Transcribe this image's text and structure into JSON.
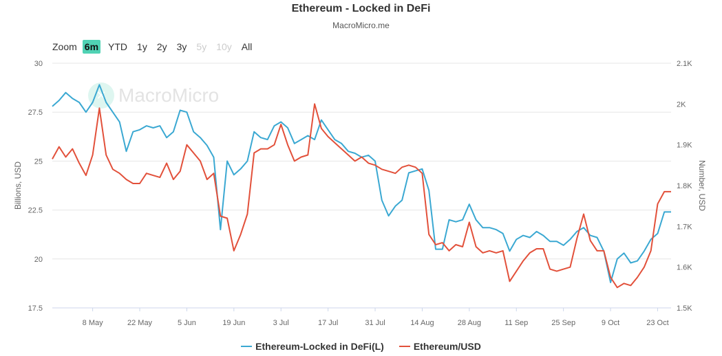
{
  "header": {
    "title": "Ethereum - Locked in DeFi",
    "subtitle": "MacroMicro.me"
  },
  "zoom": {
    "label": "Zoom",
    "buttons": [
      {
        "label": "6m",
        "state": "active"
      },
      {
        "label": "YTD",
        "state": "normal"
      },
      {
        "label": "1y",
        "state": "normal"
      },
      {
        "label": "2y",
        "state": "normal"
      },
      {
        "label": "3y",
        "state": "normal"
      },
      {
        "label": "5y",
        "state": "disabled"
      },
      {
        "label": "10y",
        "state": "disabled"
      },
      {
        "label": "All",
        "state": "normal"
      }
    ]
  },
  "watermark": {
    "text": "MacroMicro"
  },
  "legend": [
    {
      "label": "Ethereum-Locked in DeFi(L)",
      "color": "#3aa8d2"
    },
    {
      "label": "Ethereum/USD",
      "color": "#e2503a"
    }
  ],
  "chart_data": {
    "type": "line",
    "x_tick_labels": [
      "8 May",
      "22 May",
      "5 Jun",
      "19 Jun",
      "3 Jul",
      "17 Jul",
      "31 Jul",
      "14 Aug",
      "28 Aug",
      "11 Sep",
      "25 Sep",
      "9 Oct",
      "23 Oct"
    ],
    "x_range": [
      "2023-04-26",
      "2023-10-27"
    ],
    "left_axis": {
      "label": "Billions, USD",
      "ylim": [
        17.5,
        30
      ],
      "ticks": [
        "17.5",
        "20",
        "22.5",
        "25",
        "27.5",
        "30"
      ]
    },
    "right_axis": {
      "label": "Number, USD",
      "ylim": [
        1500,
        2100
      ],
      "ticks": [
        "1.5K",
        "1.6K",
        "1.7K",
        "1.8K",
        "1.9K",
        "2K",
        "2.1K"
      ]
    },
    "grid": "horizontal",
    "legend_position": "bottom-center",
    "series": [
      {
        "name": "Ethereum-Locked in DeFi(L)",
        "axis": "left",
        "color": "#3aa8d2",
        "points": [
          [
            "2023-04-26",
            27.8
          ],
          [
            "2023-04-28",
            28.1
          ],
          [
            "2023-04-30",
            28.5
          ],
          [
            "2023-05-02",
            28.2
          ],
          [
            "2023-05-04",
            28.0
          ],
          [
            "2023-05-06",
            27.5
          ],
          [
            "2023-05-08",
            28.0
          ],
          [
            "2023-05-10",
            28.9
          ],
          [
            "2023-05-12",
            28.0
          ],
          [
            "2023-05-14",
            27.5
          ],
          [
            "2023-05-16",
            27.0
          ],
          [
            "2023-05-18",
            25.5
          ],
          [
            "2023-05-20",
            26.5
          ],
          [
            "2023-05-22",
            26.6
          ],
          [
            "2023-05-24",
            26.8
          ],
          [
            "2023-05-26",
            26.7
          ],
          [
            "2023-05-28",
            26.8
          ],
          [
            "2023-05-30",
            26.2
          ],
          [
            "2023-06-01",
            26.5
          ],
          [
            "2023-06-03",
            27.6
          ],
          [
            "2023-06-05",
            27.5
          ],
          [
            "2023-06-07",
            26.5
          ],
          [
            "2023-06-09",
            26.2
          ],
          [
            "2023-06-11",
            25.8
          ],
          [
            "2023-06-13",
            25.2
          ],
          [
            "2023-06-15",
            21.5
          ],
          [
            "2023-06-17",
            25.0
          ],
          [
            "2023-06-19",
            24.3
          ],
          [
            "2023-06-21",
            24.6
          ],
          [
            "2023-06-23",
            25.0
          ],
          [
            "2023-06-25",
            26.5
          ],
          [
            "2023-06-27",
            26.2
          ],
          [
            "2023-06-29",
            26.1
          ],
          [
            "2023-07-01",
            26.8
          ],
          [
            "2023-07-03",
            27.0
          ],
          [
            "2023-07-05",
            26.7
          ],
          [
            "2023-07-07",
            25.9
          ],
          [
            "2023-07-09",
            26.1
          ],
          [
            "2023-07-11",
            26.3
          ],
          [
            "2023-07-13",
            26.1
          ],
          [
            "2023-07-15",
            27.1
          ],
          [
            "2023-07-17",
            26.6
          ],
          [
            "2023-07-19",
            26.1
          ],
          [
            "2023-07-21",
            25.9
          ],
          [
            "2023-07-23",
            25.5
          ],
          [
            "2023-07-25",
            25.4
          ],
          [
            "2023-07-27",
            25.2
          ],
          [
            "2023-07-29",
            25.3
          ],
          [
            "2023-07-31",
            25.0
          ],
          [
            "2023-08-02",
            23.0
          ],
          [
            "2023-08-04",
            22.2
          ],
          [
            "2023-08-06",
            22.7
          ],
          [
            "2023-08-08",
            23.0
          ],
          [
            "2023-08-10",
            24.4
          ],
          [
            "2023-08-12",
            24.5
          ],
          [
            "2023-08-14",
            24.6
          ],
          [
            "2023-08-16",
            23.5
          ],
          [
            "2023-08-18",
            20.5
          ],
          [
            "2023-08-20",
            20.5
          ],
          [
            "2023-08-22",
            22.0
          ],
          [
            "2023-08-24",
            21.9
          ],
          [
            "2023-08-26",
            22.0
          ],
          [
            "2023-08-28",
            22.8
          ],
          [
            "2023-08-30",
            22.0
          ],
          [
            "2023-09-01",
            21.6
          ],
          [
            "2023-09-03",
            21.6
          ],
          [
            "2023-09-05",
            21.5
          ],
          [
            "2023-09-07",
            21.3
          ],
          [
            "2023-09-09",
            20.4
          ],
          [
            "2023-09-11",
            21.0
          ],
          [
            "2023-09-13",
            21.2
          ],
          [
            "2023-09-15",
            21.1
          ],
          [
            "2023-09-17",
            21.4
          ],
          [
            "2023-09-19",
            21.2
          ],
          [
            "2023-09-21",
            20.9
          ],
          [
            "2023-09-23",
            20.9
          ],
          [
            "2023-09-25",
            20.7
          ],
          [
            "2023-09-27",
            21.0
          ],
          [
            "2023-09-29",
            21.4
          ],
          [
            "2023-10-01",
            21.6
          ],
          [
            "2023-10-03",
            21.2
          ],
          [
            "2023-10-05",
            21.1
          ],
          [
            "2023-10-07",
            20.4
          ],
          [
            "2023-10-09",
            18.8
          ],
          [
            "2023-10-11",
            20.0
          ],
          [
            "2023-10-13",
            20.3
          ],
          [
            "2023-10-15",
            19.8
          ],
          [
            "2023-10-17",
            19.9
          ],
          [
            "2023-10-19",
            20.4
          ],
          [
            "2023-10-21",
            21.0
          ],
          [
            "2023-10-23",
            21.3
          ],
          [
            "2023-10-25",
            22.4
          ],
          [
            "2023-10-27",
            22.4
          ]
        ]
      },
      {
        "name": "Ethereum/USD",
        "axis": "right",
        "color": "#e2503a",
        "points": [
          [
            "2023-04-26",
            1865
          ],
          [
            "2023-04-28",
            1895
          ],
          [
            "2023-04-30",
            1870
          ],
          [
            "2023-05-02",
            1890
          ],
          [
            "2023-05-04",
            1855
          ],
          [
            "2023-05-06",
            1825
          ],
          [
            "2023-05-08",
            1875
          ],
          [
            "2023-05-10",
            1990
          ],
          [
            "2023-05-12",
            1875
          ],
          [
            "2023-05-14",
            1840
          ],
          [
            "2023-05-16",
            1830
          ],
          [
            "2023-05-18",
            1815
          ],
          [
            "2023-05-20",
            1805
          ],
          [
            "2023-05-22",
            1805
          ],
          [
            "2023-05-24",
            1830
          ],
          [
            "2023-05-26",
            1825
          ],
          [
            "2023-05-28",
            1820
          ],
          [
            "2023-05-30",
            1855
          ],
          [
            "2023-06-01",
            1815
          ],
          [
            "2023-06-03",
            1835
          ],
          [
            "2023-06-05",
            1900
          ],
          [
            "2023-06-07",
            1880
          ],
          [
            "2023-06-09",
            1860
          ],
          [
            "2023-06-11",
            1815
          ],
          [
            "2023-06-13",
            1830
          ],
          [
            "2023-06-15",
            1725
          ],
          [
            "2023-06-17",
            1720
          ],
          [
            "2023-06-19",
            1640
          ],
          [
            "2023-06-21",
            1680
          ],
          [
            "2023-06-23",
            1730
          ],
          [
            "2023-06-25",
            1880
          ],
          [
            "2023-06-27",
            1890
          ],
          [
            "2023-06-29",
            1890
          ],
          [
            "2023-07-01",
            1900
          ],
          [
            "2023-07-03",
            1950
          ],
          [
            "2023-07-05",
            1900
          ],
          [
            "2023-07-07",
            1860
          ],
          [
            "2023-07-09",
            1870
          ],
          [
            "2023-07-11",
            1875
          ],
          [
            "2023-07-13",
            2000
          ],
          [
            "2023-07-15",
            1940
          ],
          [
            "2023-07-17",
            1920
          ],
          [
            "2023-07-19",
            1905
          ],
          [
            "2023-07-21",
            1890
          ],
          [
            "2023-07-23",
            1875
          ],
          [
            "2023-07-25",
            1860
          ],
          [
            "2023-07-27",
            1870
          ],
          [
            "2023-07-29",
            1855
          ],
          [
            "2023-07-31",
            1850
          ],
          [
            "2023-08-02",
            1840
          ],
          [
            "2023-08-04",
            1835
          ],
          [
            "2023-08-06",
            1830
          ],
          [
            "2023-08-08",
            1845
          ],
          [
            "2023-08-10",
            1850
          ],
          [
            "2023-08-12",
            1845
          ],
          [
            "2023-08-14",
            1830
          ],
          [
            "2023-08-16",
            1680
          ],
          [
            "2023-08-18",
            1655
          ],
          [
            "2023-08-20",
            1660
          ],
          [
            "2023-08-22",
            1640
          ],
          [
            "2023-08-24",
            1655
          ],
          [
            "2023-08-26",
            1650
          ],
          [
            "2023-08-28",
            1710
          ],
          [
            "2023-08-30",
            1650
          ],
          [
            "2023-09-01",
            1635
          ],
          [
            "2023-09-03",
            1640
          ],
          [
            "2023-09-05",
            1635
          ],
          [
            "2023-09-07",
            1640
          ],
          [
            "2023-09-09",
            1565
          ],
          [
            "2023-09-11",
            1590
          ],
          [
            "2023-09-13",
            1615
          ],
          [
            "2023-09-15",
            1635
          ],
          [
            "2023-09-17",
            1645
          ],
          [
            "2023-09-19",
            1645
          ],
          [
            "2023-09-21",
            1595
          ],
          [
            "2023-09-23",
            1590
          ],
          [
            "2023-09-25",
            1595
          ],
          [
            "2023-09-27",
            1600
          ],
          [
            "2023-09-29",
            1670
          ],
          [
            "2023-10-01",
            1730
          ],
          [
            "2023-10-03",
            1665
          ],
          [
            "2023-10-05",
            1640
          ],
          [
            "2023-10-07",
            1640
          ],
          [
            "2023-10-09",
            1575
          ],
          [
            "2023-10-11",
            1550
          ],
          [
            "2023-10-13",
            1560
          ],
          [
            "2023-10-15",
            1555
          ],
          [
            "2023-10-17",
            1575
          ],
          [
            "2023-10-19",
            1600
          ],
          [
            "2023-10-21",
            1640
          ],
          [
            "2023-10-23",
            1755
          ],
          [
            "2023-10-25",
            1785
          ],
          [
            "2023-10-27",
            1785
          ]
        ]
      }
    ]
  }
}
